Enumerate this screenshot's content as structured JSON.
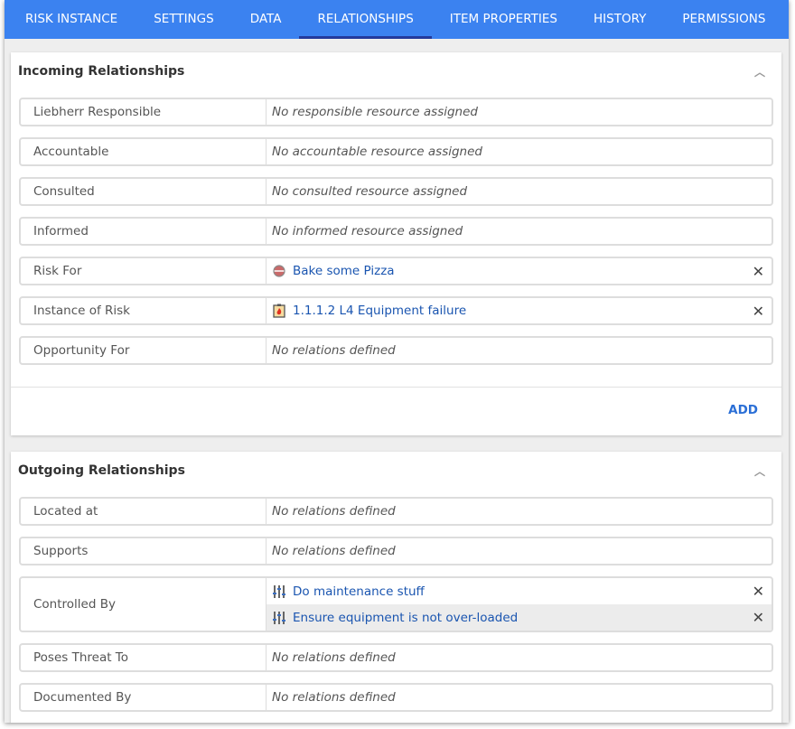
{
  "tabs": [
    {
      "label": "RISK INSTANCE"
    },
    {
      "label": "SETTINGS"
    },
    {
      "label": "DATA"
    },
    {
      "label": "RELATIONSHIPS",
      "active": true
    },
    {
      "label": "ITEM PROPERTIES"
    },
    {
      "label": "HISTORY"
    },
    {
      "label": "PERMISSIONS"
    }
  ],
  "incoming": {
    "title": "Incoming Relationships",
    "add_label": "ADD",
    "rows": [
      {
        "label": "Liebherr Responsible",
        "empty": "No responsible resource assigned"
      },
      {
        "label": "Accountable",
        "empty": "No accountable resource assigned"
      },
      {
        "label": "Consulted",
        "empty": "No consulted resource assigned"
      },
      {
        "label": "Informed",
        "empty": "No informed resource assigned"
      },
      {
        "label": "Risk For",
        "items": [
          {
            "text": "Bake some Pizza",
            "icon": "process-icon"
          }
        ]
      },
      {
        "label": "Instance of Risk",
        "items": [
          {
            "text": "1.1.1.2 L4 Equipment failure",
            "icon": "risk-fire-icon"
          }
        ]
      },
      {
        "label": "Opportunity For",
        "empty": "No relations defined"
      }
    ]
  },
  "outgoing": {
    "title": "Outgoing Relationships",
    "rows": [
      {
        "label": "Located at",
        "empty": "No relations defined"
      },
      {
        "label": "Supports",
        "empty": "No relations defined"
      },
      {
        "label": "Controlled By",
        "items": [
          {
            "text": "Do maintenance stuff",
            "icon": "control-sliders-icon"
          },
          {
            "text": "Ensure equipment is not over-loaded",
            "icon": "control-sliders-icon"
          }
        ]
      },
      {
        "label": "Poses Threat To",
        "empty": "No relations defined"
      },
      {
        "label": "Documented By",
        "empty": "No relations defined"
      }
    ]
  },
  "colors": {
    "tabbar": "#3b82f0",
    "active_indicator": "#233a9c",
    "link": "#1a55b0"
  }
}
